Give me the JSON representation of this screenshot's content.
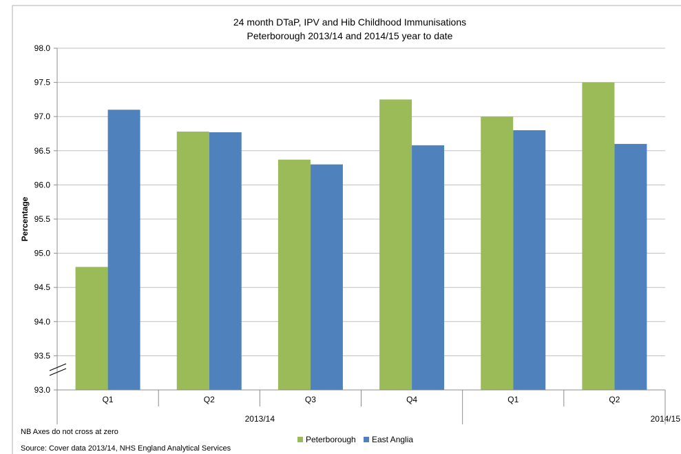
{
  "chart_data": {
    "type": "bar",
    "title": "24 month DTaP, IPV and Hib Childhood Immunisations",
    "subtitle": "Peterborough 2013/14 and 2014/15 year to date",
    "ylabel": "Percentage",
    "xlabel": "",
    "ylim": [
      93.0,
      98.0
    ],
    "yticks": [
      "93.0",
      "93.5",
      "94.0",
      "94.5",
      "95.0",
      "95.5",
      "96.0",
      "96.5",
      "97.0",
      "97.5",
      "98.0"
    ],
    "categories": [
      "Q1",
      "Q2",
      "Q3",
      "Q4",
      "Q1",
      "Q2"
    ],
    "groups": [
      {
        "label": "2013/14",
        "count": 4
      },
      {
        "label": "2014/15",
        "count": 2
      }
    ],
    "series": [
      {
        "name": "Peterborough",
        "color": "#9BBB59",
        "values": [
          94.8,
          96.78,
          96.37,
          97.25,
          97.0,
          97.5
        ]
      },
      {
        "name": "East Anglia",
        "color": "#4F81BD",
        "values": [
          97.1,
          96.77,
          96.3,
          96.58,
          96.8,
          96.6
        ]
      }
    ],
    "grid": true,
    "legend_position": "bottom",
    "axis_break": true
  },
  "notes": {
    "axis_note": "NB Axes do not cross at zero",
    "source": "Source: Cover data 2013/14, NHS England Analytical Services"
  }
}
